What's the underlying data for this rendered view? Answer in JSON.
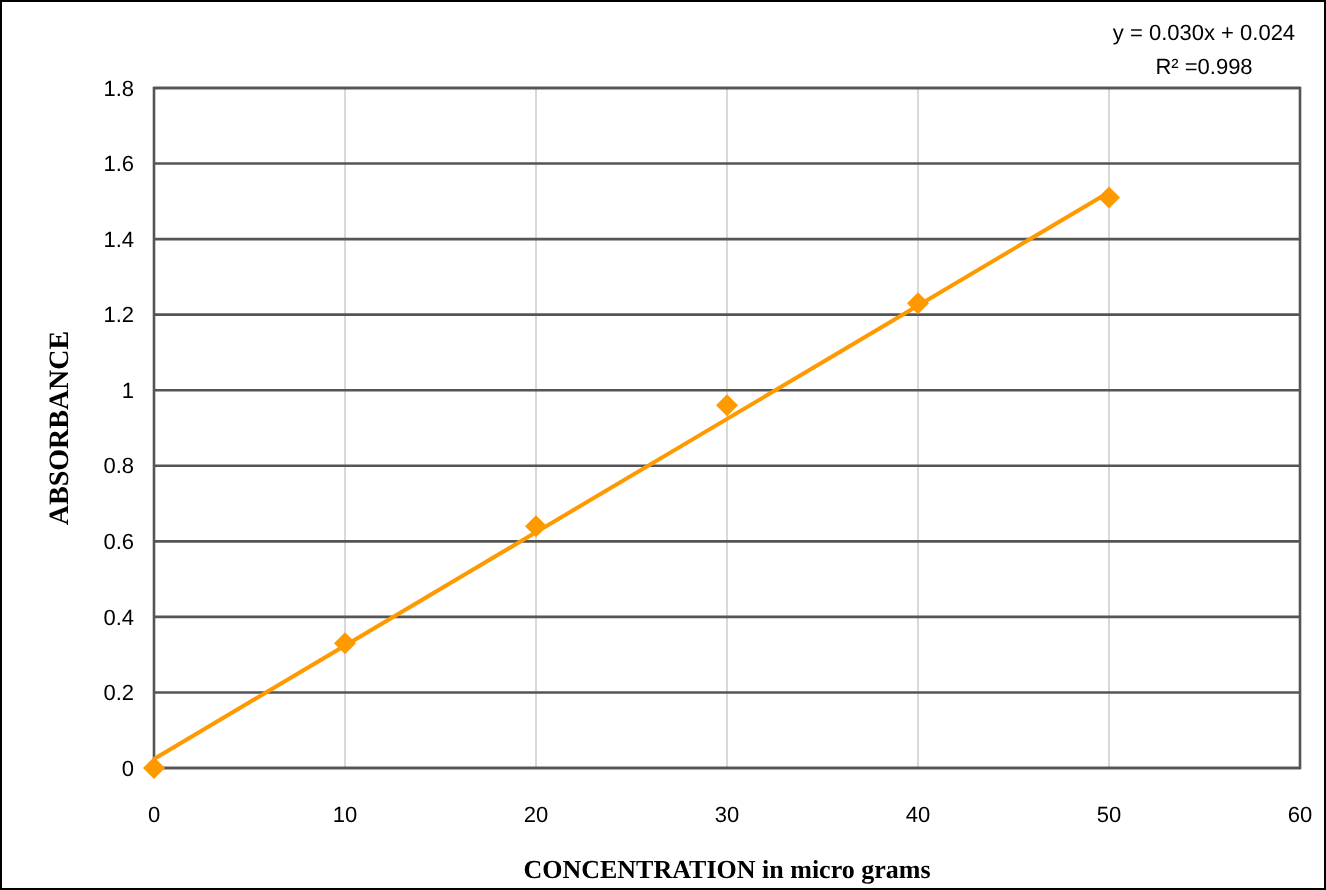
{
  "chart_data": {
    "type": "scatter",
    "xlabel": "CONCENTRATION in micro grams",
    "ylabel": "ABSORBANCE",
    "annotations": [
      "y = 0.030x + 0.024",
      "R² =0.998"
    ],
    "xlim": [
      0,
      60
    ],
    "xticks": [
      0,
      10,
      20,
      30,
      40,
      50,
      60
    ],
    "ylim": [
      0,
      1.8
    ],
    "yticks": [
      0,
      {
        "value": 0.2,
        "label": "0.2"
      },
      {
        "value": 0.4,
        "label": "0.4"
      },
      {
        "value": 0.6,
        "label": "0.6"
      },
      {
        "value": 0.8,
        "label": "0.8"
      },
      1,
      {
        "value": 1.2,
        "label": "1.2"
      },
      {
        "value": 1.4,
        "label": "1.4"
      },
      {
        "value": 1.6,
        "label": "1.6"
      },
      {
        "value": 1.8,
        "label": "1.8"
      }
    ],
    "grid": true,
    "series": [
      {
        "type": "scatter",
        "color": "#ff9900",
        "marker": "diamond",
        "x": [
          0,
          10,
          20,
          30,
          40,
          50
        ],
        "values": [
          0,
          0.33,
          0.64,
          0.96,
          1.23,
          1.51
        ]
      },
      {
        "type": "line",
        "color": "#ff9900",
        "marker": "none",
        "line_style": "solid",
        "x": [
          0,
          50
        ],
        "values": [
          0.024,
          1.524
        ]
      }
    ]
  }
}
